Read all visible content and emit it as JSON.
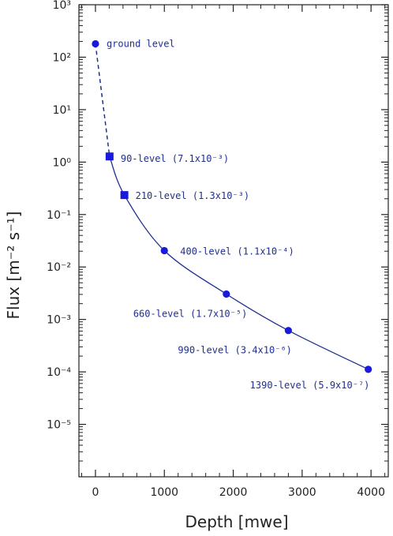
{
  "chart_data": {
    "type": "scatter",
    "xlabel": "Depth [mwe]",
    "ylabel": "Flux [m⁻² s⁻¹]",
    "xlim": [
      -240,
      4250
    ],
    "ylim": [
      1e-06,
      1000
    ],
    "yscale": "log",
    "x_ticks": [
      0,
      1000,
      2000,
      3000,
      4000
    ],
    "x_tick_labels": [
      "0",
      "1000",
      "2000",
      "3000",
      "4000"
    ],
    "y_ticks_exp": [
      3,
      2,
      1,
      0,
      -1,
      -2,
      -3,
      -4,
      -5
    ],
    "y_tick_labels": [
      "10³",
      "10²",
      "10¹",
      "10⁰",
      "10⁻¹",
      "10⁻²",
      "10⁻³",
      "10⁻⁴",
      "10⁻⁵"
    ],
    "grid": false,
    "colors": {
      "series": "#1f2f8f",
      "marker": "#1a1adc",
      "axis": "#222222"
    },
    "points": [
      {
        "x": 0,
        "y": 180,
        "marker": "circle",
        "label": "ground level"
      },
      {
        "x": 205,
        "y": 1.28,
        "marker": "square",
        "label": "90-level (7.1x10⁻³)"
      },
      {
        "x": 420,
        "y": 0.235,
        "marker": "square",
        "label": "210-level (1.3x10⁻³)"
      },
      {
        "x": 1000,
        "y": 0.0205,
        "marker": "circle",
        "label": "400-level (1.1x10⁻⁴)"
      },
      {
        "x": 1900,
        "y": 0.00305,
        "marker": "circle",
        "label": "660-level (1.7x10⁻⁵)"
      },
      {
        "x": 2800,
        "y": 0.000615,
        "marker": "circle",
        "label": "990-level (3.4x10⁻⁶)"
      },
      {
        "x": 3960,
        "y": 0.000112,
        "marker": "circle",
        "label": "1390-level (5.9x10⁻⁷)"
      }
    ]
  }
}
